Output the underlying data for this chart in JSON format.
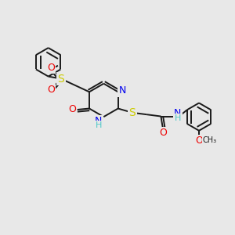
{
  "background_color": "#e8e8e8",
  "bond_color": "#1a1a1a",
  "bond_width": 1.4,
  "font_size": 9,
  "atom_colors": {
    "C": "#1a1a1a",
    "N": "#0000ee",
    "O": "#ee0000",
    "S": "#cccc00",
    "H": "#4dc8c8"
  },
  "bg": "#e8e8e8"
}
